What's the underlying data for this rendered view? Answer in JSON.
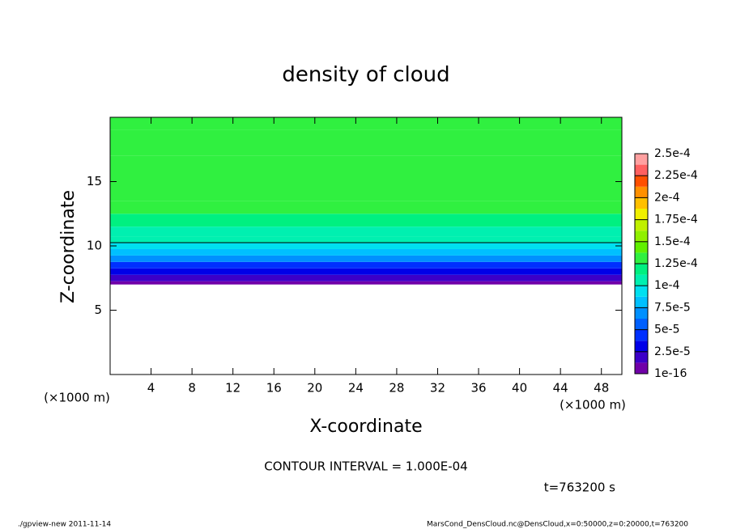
{
  "chart_data": {
    "type": "contour",
    "title": "density of cloud",
    "x_label": "X-coordinate",
    "y_label": "Z-coordinate",
    "x_unit_label": "(×1000 m)",
    "y_unit_label": "(×1000 m)",
    "xlim": [
      0,
      50
    ],
    "xticks": [
      4,
      8,
      12,
      16,
      20,
      24,
      28,
      32,
      36,
      40,
      44,
      48
    ],
    "ylim": [
      0,
      20
    ],
    "yticks": [
      5,
      10,
      15
    ],
    "y": [
      7,
      7.5,
      8,
      8.5,
      9,
      9.5,
      10,
      10.5,
      11,
      12,
      13,
      14,
      16,
      18,
      20
    ],
    "values": [
      5e-06,
      1.5e-05,
      3e-05,
      4.5e-05,
      6.5e-05,
      8e-05,
      9.5e-05,
      0.000105,
      0.000112,
      0.00012,
      0.000127,
      0.00013,
      0.000132,
      0.00013,
      0.000127
    ],
    "contour_level": 0.0001,
    "levels": [
      1e-16,
      1.25e-05,
      2.5e-05,
      3.75e-05,
      5e-05,
      6.25e-05,
      7.5e-05,
      8.75e-05,
      0.0001,
      0.0001125,
      0.000125,
      0.0001375,
      0.00015,
      0.0001625,
      0.000175,
      0.0001875,
      0.0002,
      0.0002125,
      0.000225,
      0.0002375,
      0.00025
    ],
    "colors": [
      "#7000a8",
      "#3c00c8",
      "#0000e8",
      "#0030ff",
      "#0060ff",
      "#0090ff",
      "#00c0ff",
      "#00e0f0",
      "#00f0b0",
      "#00f080",
      "#30f040",
      "#60f000",
      "#90f000",
      "#c0f000",
      "#f0f000",
      "#ffc000",
      "#ff9000",
      "#ff5000",
      "#ff6060",
      "#ffa0a0"
    ],
    "colorbar_ticks": [
      {
        "value": 1e-16,
        "label": "1e-16"
      },
      {
        "value": 2.5e-05,
        "label": "2.5e-5"
      },
      {
        "value": 5e-05,
        "label": "5e-5"
      },
      {
        "value": 7.5e-05,
        "label": "7.5e-5"
      },
      {
        "value": 0.0001,
        "label": "1e-4"
      },
      {
        "value": 0.000125,
        "label": "1.25e-4"
      },
      {
        "value": 0.00015,
        "label": "1.5e-4"
      },
      {
        "value": 0.000175,
        "label": "1.75e-4"
      },
      {
        "value": 0.0002,
        "label": "2e-4"
      },
      {
        "value": 0.000225,
        "label": "2.25e-4"
      },
      {
        "value": 0.00025,
        "label": "2.5e-4"
      }
    ],
    "annotations": [
      "CONTOUR INTERVAL = 1.000E-04",
      "t=763200 s"
    ],
    "footer_left": "./gpview-new  2011-11-14",
    "footer_right": "MarsCond_DensCloud.nc@DensCloud,x=0:50000,z=0:20000,t=763200"
  }
}
